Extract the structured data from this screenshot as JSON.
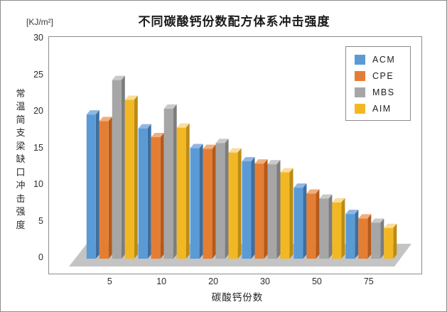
{
  "page": {
    "background": "#FFFFFF",
    "frame_border_color": "#8C8C8C"
  },
  "title": "不同碳酸钙份数配方体系冲击强度",
  "unit_label": "[KJ/m²]",
  "chart_data": {
    "type": "bar",
    "style": "3d-clustered-column",
    "title": "不同碳酸钙份数配方体系冲击强度",
    "xlabel": "碳酸钙份数",
    "ylabel": "常温简支梁缺口冲击强度",
    "y_unit": "[KJ/m²]",
    "categories": [
      "5",
      "10",
      "20",
      "30",
      "50",
      "75"
    ],
    "series": [
      {
        "name": "ACM",
        "color": "#5B9BD5",
        "top_color": "#8FB6E4",
        "side_color": "#3F6E9E",
        "values": [
          19.7,
          17.8,
          15.1,
          13.3,
          9.7,
          6.1
        ]
      },
      {
        "name": "CPE",
        "color": "#E57E35",
        "top_color": "#F0AE7E",
        "side_color": "#B55A1B",
        "values": [
          18.8,
          16.6,
          15.0,
          13.0,
          8.9,
          5.5
        ]
      },
      {
        "name": "MBS",
        "color": "#A6A6A6",
        "top_color": "#C9C9C9",
        "side_color": "#7D7D7D",
        "values": [
          24.4,
          20.5,
          15.8,
          12.9,
          8.2,
          4.9
        ]
      },
      {
        "name": "AIM",
        "color": "#F2B824",
        "top_color": "#F9DD9A",
        "side_color": "#BB8B13",
        "values": [
          21.7,
          17.9,
          14.5,
          11.8,
          7.7,
          4.2
        ]
      }
    ],
    "ylim": [
      0,
      30
    ],
    "yticks": [
      0,
      5,
      10,
      15,
      20,
      25,
      30
    ],
    "grid": false,
    "legend_position": "top-right",
    "floor_color": "#C4C4C4"
  }
}
